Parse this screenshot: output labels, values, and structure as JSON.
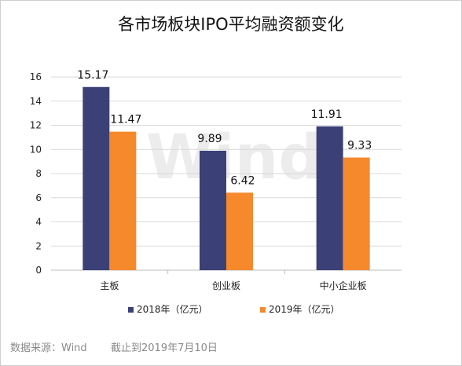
{
  "chart_data": {
    "type": "bar",
    "title": "各市场板块IPO平均融资额变化",
    "categories": [
      "主板",
      "创业板",
      "中小企业板"
    ],
    "series": [
      {
        "name": "2018年（亿元）",
        "values": [
          15.17,
          9.89,
          11.91
        ],
        "color": "#3b4176"
      },
      {
        "name": "2019年（亿元）",
        "values": [
          11.47,
          6.42,
          9.33
        ],
        "color": "#f6892c"
      }
    ],
    "ylim": [
      0,
      16
    ],
    "yticks": [
      0,
      2,
      4,
      6,
      8,
      10,
      12,
      14,
      16
    ],
    "grid": true,
    "legend_position": "bottom"
  },
  "watermark": "Wind",
  "footer": {
    "source": "数据来源：Wind",
    "as_of": "截止到2019年7月10日"
  }
}
